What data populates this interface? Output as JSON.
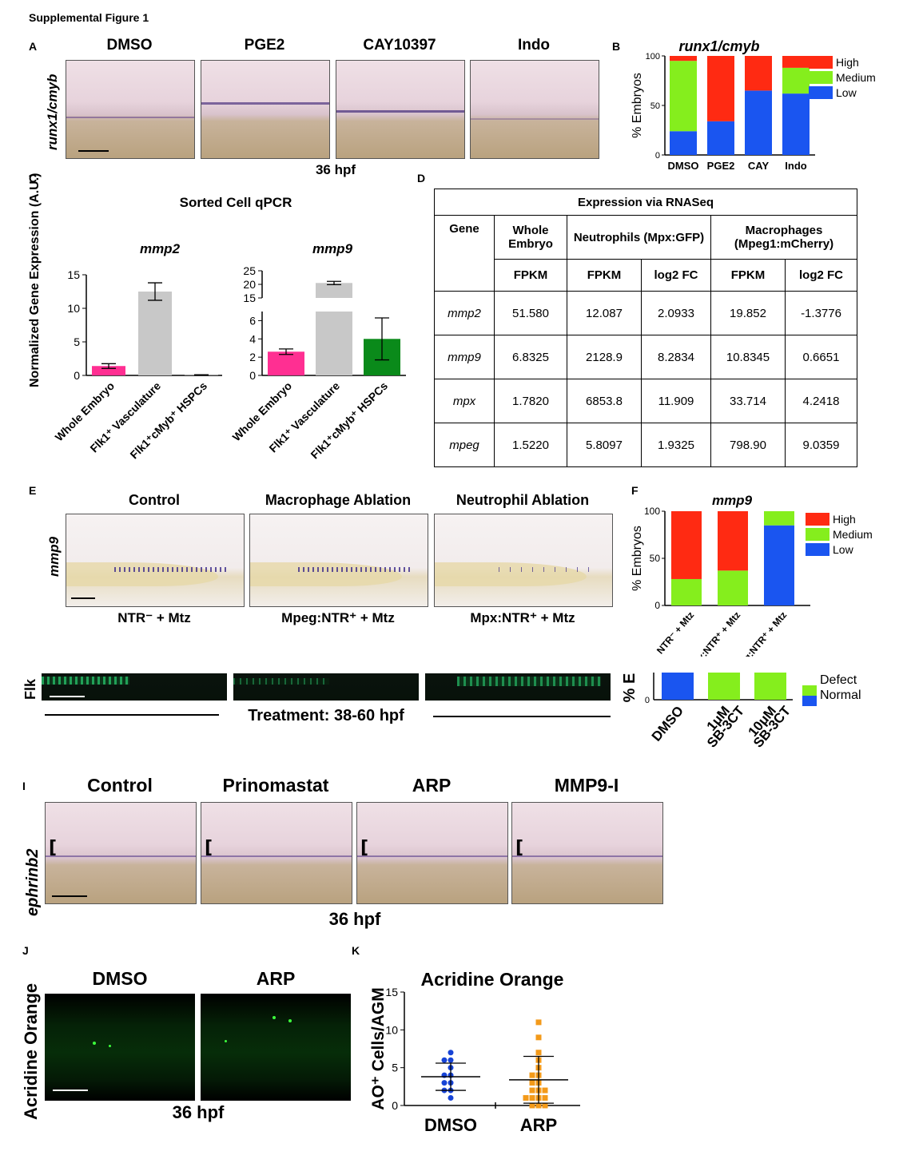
{
  "figure_title": "Supplemental Figure 1",
  "panel_letters": {
    "A": "A",
    "B": "B",
    "C": "C",
    "D": "D",
    "E": "E",
    "F": "F",
    "I": "I",
    "J": "J",
    "K": "K"
  },
  "panelA": {
    "ylabel": "runx1/cmyb",
    "conditions": [
      "DMSO",
      "PGE2",
      "CAY10397",
      "Indo"
    ],
    "caption": "36 hpf"
  },
  "panelB": {
    "title": "runx1/cmyb"
  },
  "panelC": {
    "title": "Sorted Cell qPCR",
    "ylabel": "Normalized Gene Expression (A.U.)"
  },
  "panelD": {
    "title": "Expression via RNASeq",
    "header1": [
      "Gene",
      "Whole Embryo",
      "Neutrophils (Mpx:GFP)",
      "Macrophages (Mpeg1:mCherry)"
    ],
    "header2": [
      "FPKM",
      "FPKM",
      "log2 FC",
      "FPKM",
      "log2 FC"
    ],
    "rows": [
      {
        "gene": "mmp2",
        "values": [
          "51.580",
          "12.087",
          "2.0933",
          "19.852",
          "-1.3776"
        ]
      },
      {
        "gene": "mmp9",
        "values": [
          "6.8325",
          "2128.9",
          "8.2834",
          "10.8345",
          "0.6651"
        ]
      },
      {
        "gene": "mpx",
        "values": [
          "1.7820",
          "6853.8",
          "11.909",
          "33.714",
          "4.2418"
        ]
      },
      {
        "gene": "mpeg",
        "values": [
          "1.5220",
          "5.8097",
          "1.9325",
          "798.90",
          "9.0359"
        ]
      }
    ]
  },
  "panelE": {
    "ylabel": "mmp9",
    "conditions": [
      "Control",
      "Macrophage Ablation",
      "Neutrophil Ablation"
    ],
    "treatments": [
      "NTR⁻ + Mtz",
      "Mpeg:NTR⁺  + Mtz",
      "Mpx:NTR⁺ + Mtz"
    ]
  },
  "panelF": {
    "title": "mmp9"
  },
  "flk": {
    "label": "Flk",
    "treatment": "Treatment: 38-60 hpf",
    "ylabel": "% E"
  },
  "panelI": {
    "ylabel": "ephrinb2",
    "conditions": [
      "Control",
      "Prinomastat",
      "ARP",
      "MMP9-I"
    ],
    "caption": "36 hpf"
  },
  "panelJ": {
    "ylabel": "Acridine Orange",
    "conditions": [
      "DMSO",
      "ARP"
    ],
    "caption": "36 hpf"
  },
  "panelK": {
    "title": "Acridine Orange"
  },
  "colors": {
    "high": "#ff2a12",
    "medium": "#85ee1d",
    "low": "#1a55f0",
    "pink": "#ff2f92",
    "gray": "#c8c8c8",
    "green": "#0a8a1a",
    "blue_dots": "#1643d6",
    "orange_dots": "#f39a1a"
  },
  "chart_data": [
    {
      "id": "B",
      "type": "bar",
      "stacked": true,
      "title": "runx1/cmyb",
      "categories": [
        "DMSO",
        "PGE2",
        "CAY",
        "Indo"
      ],
      "series": [
        {
          "name": "High",
          "values": [
            5,
            66,
            35,
            12
          ]
        },
        {
          "name": "Medium",
          "values": [
            71,
            0,
            0,
            26
          ]
        },
        {
          "name": "Low",
          "values": [
            24,
            34,
            65,
            62
          ]
        }
      ],
      "ylabel": "% Embryos",
      "ylim": [
        0,
        100
      ],
      "yticks": [
        0,
        50,
        100
      ],
      "legend": "right"
    },
    {
      "id": "C-mmp2",
      "type": "bar",
      "title": "mmp2",
      "categories": [
        "Whole Embryo",
        "Flk1⁺ Vasculature",
        "Flk1⁺cMyb⁺ HSPCs"
      ],
      "values": [
        1.4,
        12.5,
        0.05
      ],
      "errors": [
        0.35,
        1.3,
        0.05
      ],
      "ylim": [
        0,
        15
      ],
      "yticks": [
        0,
        5,
        10,
        15
      ]
    },
    {
      "id": "C-mmp9",
      "type": "bar",
      "title": "mmp9",
      "categories": [
        "Whole Embryo",
        "Flk1⁺ Vasculature",
        "Flk1⁺cMyb⁺ HSPCs"
      ],
      "values": [
        2.6,
        20.5,
        4.0
      ],
      "errors": [
        0.3,
        0.6,
        2.3
      ],
      "yticks": [
        0,
        2,
        4,
        6,
        15,
        20,
        25
      ]
    },
    {
      "id": "F",
      "type": "bar",
      "stacked": true,
      "title": "mmp9",
      "categories": [
        "NTR⁻ + Mtz",
        "Mpx:NTR⁺ + Mtz",
        "Mpeg:NTR⁺ + Mtz"
      ],
      "series": [
        {
          "name": "High",
          "values": [
            72,
            63,
            0
          ]
        },
        {
          "name": "Medium",
          "values": [
            28,
            37,
            15
          ]
        },
        {
          "name": "Low",
          "values": [
            0,
            0,
            85
          ]
        }
      ],
      "ylabel": "% Embryos",
      "ylim": [
        0,
        100
      ],
      "yticks": [
        0,
        50,
        100
      ],
      "legend": "right"
    },
    {
      "id": "H",
      "type": "bar",
      "stacked": true,
      "categories": [
        "DMSO",
        "1μM SB-3CT",
        "10μM SB-3CT"
      ],
      "series": [
        {
          "name": "Defect",
          "values": [
            0,
            100,
            100
          ]
        },
        {
          "name": "Normal",
          "values": [
            100,
            0,
            0
          ]
        }
      ],
      "ylabel": "% E",
      "legend": "right"
    },
    {
      "id": "K",
      "type": "scatter",
      "title": "Acridine Orange",
      "categories": [
        "DMSO",
        "ARP"
      ],
      "ylabel": "AO⁺ Cells/AGM",
      "ylim": [
        0,
        15
      ],
      "yticks": [
        0,
        5,
        10,
        15
      ],
      "series": [
        {
          "name": "DMSO",
          "values": [
            7,
            6,
            6,
            5,
            4,
            4,
            3,
            3,
            2,
            2,
            1
          ],
          "mean": 3.8,
          "sd": 1.8
        },
        {
          "name": "ARP",
          "values": [
            11,
            9,
            7,
            6,
            5,
            4,
            4,
            3,
            3,
            2,
            2,
            2,
            1,
            1,
            1,
            1,
            0,
            0,
            0
          ],
          "mean": 3.4,
          "sd": 3.1
        }
      ]
    }
  ]
}
